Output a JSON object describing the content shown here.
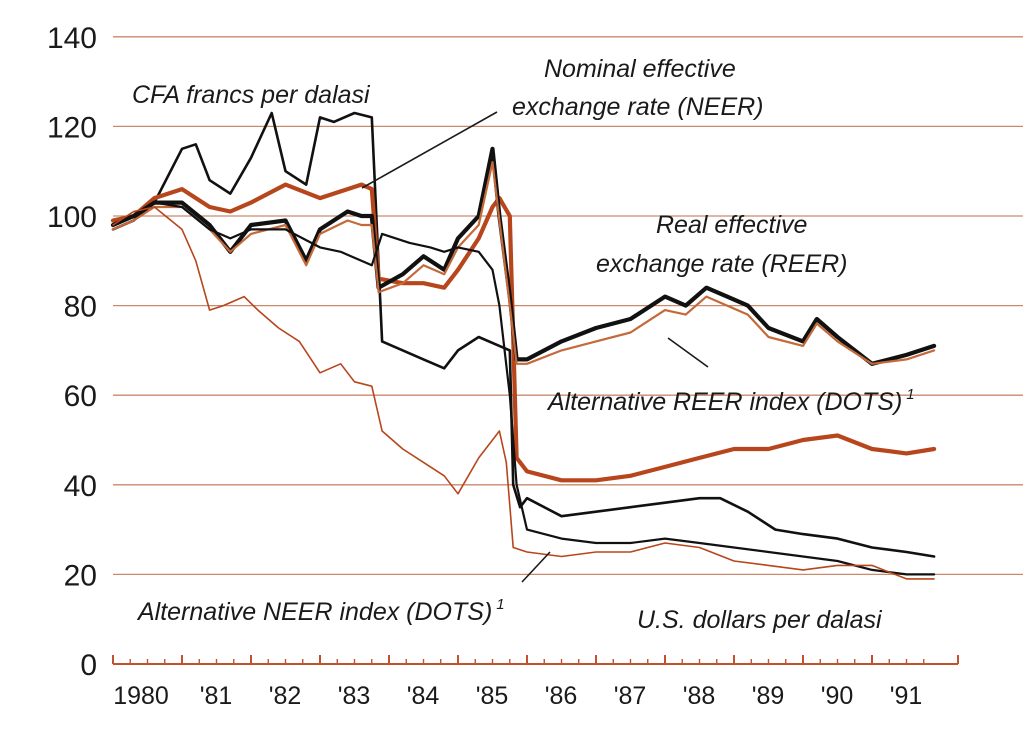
{
  "chart_data": {
    "type": "line",
    "title": "",
    "xlabel": "",
    "ylabel": "",
    "xlim": [
      1980,
      1991.9
    ],
    "ylim": [
      0,
      140
    ],
    "yticks": [
      0,
      20,
      40,
      60,
      80,
      100,
      120,
      140
    ],
    "xtick_labels": [
      "1980",
      "'81",
      "'82",
      "'83",
      "'84",
      "'85",
      "'86",
      "'87",
      "'88",
      "'89",
      "'90",
      "'91"
    ],
    "grid": true,
    "colors": {
      "grid": "#c98a6e",
      "axis": "#c0522e",
      "black": "#111111",
      "orange": "#b8461c",
      "orange_light": "#c46a3a"
    },
    "series": [
      {
        "name": "CFA francs per dalasi",
        "color": "black",
        "width": 2.6,
        "x": [
          1980.0,
          1980.3,
          1980.6,
          1981.0,
          1981.2,
          1981.4,
          1981.7,
          1982.0,
          1982.3,
          1982.5,
          1982.8,
          1983.0,
          1983.2,
          1983.5,
          1983.75,
          1983.9,
          1984.2,
          1984.5,
          1984.8,
          1985.0,
          1985.3,
          1985.6,
          1985.75,
          1985.8,
          1985.9,
          1986.0,
          1986.5,
          1987.0,
          1987.5,
          1988.0,
          1988.5,
          1988.8,
          1989.2,
          1989.6,
          1990.0,
          1990.5,
          1991.0,
          1991.5,
          1991.9
        ],
        "y": [
          97,
          99,
          103,
          115,
          116,
          108,
          105,
          113,
          123,
          110,
          107,
          122,
          121,
          123,
          122,
          72,
          70,
          68,
          66,
          70,
          73,
          71,
          70,
          40,
          35,
          37,
          33,
          34,
          35,
          36,
          37,
          37,
          34,
          30,
          29,
          28,
          26,
          25,
          24
        ]
      },
      {
        "name": "Nominal effective exchange rate (NEER)",
        "color": "orange",
        "width": 4.2,
        "x": [
          1980.0,
          1980.3,
          1980.6,
          1981.0,
          1981.4,
          1981.7,
          1982.0,
          1982.5,
          1983.0,
          1983.4,
          1983.6,
          1983.75,
          1983.85,
          1984.2,
          1984.5,
          1984.8,
          1985.0,
          1985.3,
          1985.5,
          1985.6,
          1985.75,
          1985.85,
          1986.0,
          1986.5,
          1987.0,
          1987.5,
          1988.0,
          1988.5,
          1989.0,
          1989.5,
          1990.0,
          1990.5,
          1991.0,
          1991.5,
          1991.9
        ],
        "y": [
          99,
          100,
          104,
          106,
          102,
          101,
          103,
          107,
          104,
          106,
          107,
          106,
          86,
          85,
          85,
          84,
          88,
          95,
          102,
          104,
          100,
          46,
          43,
          41,
          41,
          42,
          44,
          46,
          48,
          48,
          50,
          51,
          48,
          47,
          48
        ]
      },
      {
        "name": "Real effective exchange rate (REER)",
        "color": "black",
        "width": 4.2,
        "x": [
          1980.0,
          1980.3,
          1980.6,
          1981.0,
          1981.4,
          1981.7,
          1982.0,
          1982.5,
          1982.8,
          1983.0,
          1983.4,
          1983.6,
          1983.75,
          1983.85,
          1984.2,
          1984.5,
          1984.8,
          1985.0,
          1985.3,
          1985.5,
          1985.6,
          1985.75,
          1985.85,
          1986.0,
          1986.5,
          1987.0,
          1987.5,
          1988.0,
          1988.3,
          1988.6,
          1988.9,
          1989.2,
          1989.5,
          1990.0,
          1990.2,
          1990.5,
          1991.0,
          1991.5,
          1991.9
        ],
        "y": [
          98,
          100,
          103,
          103,
          98,
          92,
          98,
          99,
          90,
          97,
          101,
          100,
          100,
          84,
          87,
          91,
          88,
          95,
          100,
          115,
          100,
          82,
          68,
          68,
          72,
          75,
          77,
          82,
          80,
          84,
          82,
          80,
          75,
          72,
          77,
          73,
          67,
          69,
          71
        ]
      },
      {
        "name": "Alternative REER index (DOTS)",
        "color": "orange_light",
        "width": 2.2,
        "x": [
          1980.0,
          1980.3,
          1980.6,
          1981.0,
          1981.4,
          1981.7,
          1982.0,
          1982.5,
          1982.8,
          1983.0,
          1983.4,
          1983.6,
          1983.75,
          1983.85,
          1984.2,
          1984.5,
          1984.8,
          1985.0,
          1985.3,
          1985.5,
          1985.6,
          1985.75,
          1985.85,
          1986.0,
          1986.5,
          1987.0,
          1987.5,
          1988.0,
          1988.3,
          1988.6,
          1988.9,
          1989.2,
          1989.5,
          1990.0,
          1990.2,
          1990.5,
          1991.0,
          1991.5,
          1991.9
        ],
        "y": [
          97,
          99,
          102,
          102,
          97,
          92,
          96,
          98,
          89,
          96,
          99,
          98,
          98,
          83,
          85,
          89,
          87,
          93,
          98,
          112,
          99,
          80,
          67,
          67,
          70,
          72,
          74,
          79,
          78,
          82,
          80,
          78,
          73,
          71,
          76,
          72,
          67,
          68,
          70
        ]
      },
      {
        "name": "Alternative NEER index (DOTS)",
        "color": "black",
        "width": 2.2,
        "x": [
          1980.0,
          1980.3,
          1980.6,
          1981.0,
          1981.4,
          1981.7,
          1982.0,
          1982.5,
          1983.0,
          1983.3,
          1983.6,
          1983.75,
          1983.9,
          1984.3,
          1984.6,
          1984.8,
          1985.0,
          1985.3,
          1985.5,
          1985.6,
          1985.75,
          1985.85,
          1986.0,
          1986.5,
          1987.0,
          1987.5,
          1988.0,
          1988.5,
          1989.0,
          1989.5,
          1990.0,
          1990.5,
          1991.0,
          1991.5,
          1991.9
        ],
        "y": [
          98,
          100,
          103,
          102,
          97,
          95,
          97,
          97,
          93,
          92,
          90,
          89,
          96,
          94,
          93,
          92,
          93,
          92,
          88,
          80,
          60,
          40,
          30,
          28,
          27,
          27,
          28,
          27,
          26,
          25,
          24,
          23,
          21,
          20,
          20
        ]
      },
      {
        "name": "U.S. dollars per dalasi",
        "color": "orange",
        "width": 1.6,
        "x": [
          1980.0,
          1980.3,
          1980.6,
          1981.0,
          1981.2,
          1981.4,
          1981.6,
          1981.9,
          1982.1,
          1982.4,
          1982.7,
          1983.0,
          1983.3,
          1983.5,
          1983.75,
          1983.9,
          1984.2,
          1984.5,
          1984.8,
          1985.0,
          1985.3,
          1985.5,
          1985.6,
          1985.7,
          1985.8,
          1986.0,
          1986.5,
          1987.0,
          1987.5,
          1988.0,
          1988.5,
          1989.0,
          1989.5,
          1990.0,
          1990.5,
          1991.0,
          1991.5,
          1991.9
        ],
        "y": [
          98,
          101,
          102,
          97,
          90,
          79,
          80,
          82,
          79,
          75,
          72,
          65,
          67,
          63,
          62,
          52,
          48,
          45,
          42,
          38,
          46,
          50,
          52,
          45,
          26,
          25,
          24,
          25,
          25,
          27,
          26,
          23,
          22,
          21,
          22,
          22,
          19,
          19
        ]
      }
    ],
    "annotations": [
      {
        "text": "CFA francs per dalasi"
      },
      {
        "text": "Nominal effective"
      },
      {
        "text": "exchange rate (NEER)"
      },
      {
        "text": "Real effective"
      },
      {
        "text": "exchange rate (REER)"
      },
      {
        "text": "Alternative REER index (DOTS)",
        "sup": "1"
      },
      {
        "text": "Alternative NEER index (DOTS)",
        "sup": "1"
      },
      {
        "text": "U.S. dollars per dalasi"
      }
    ]
  }
}
